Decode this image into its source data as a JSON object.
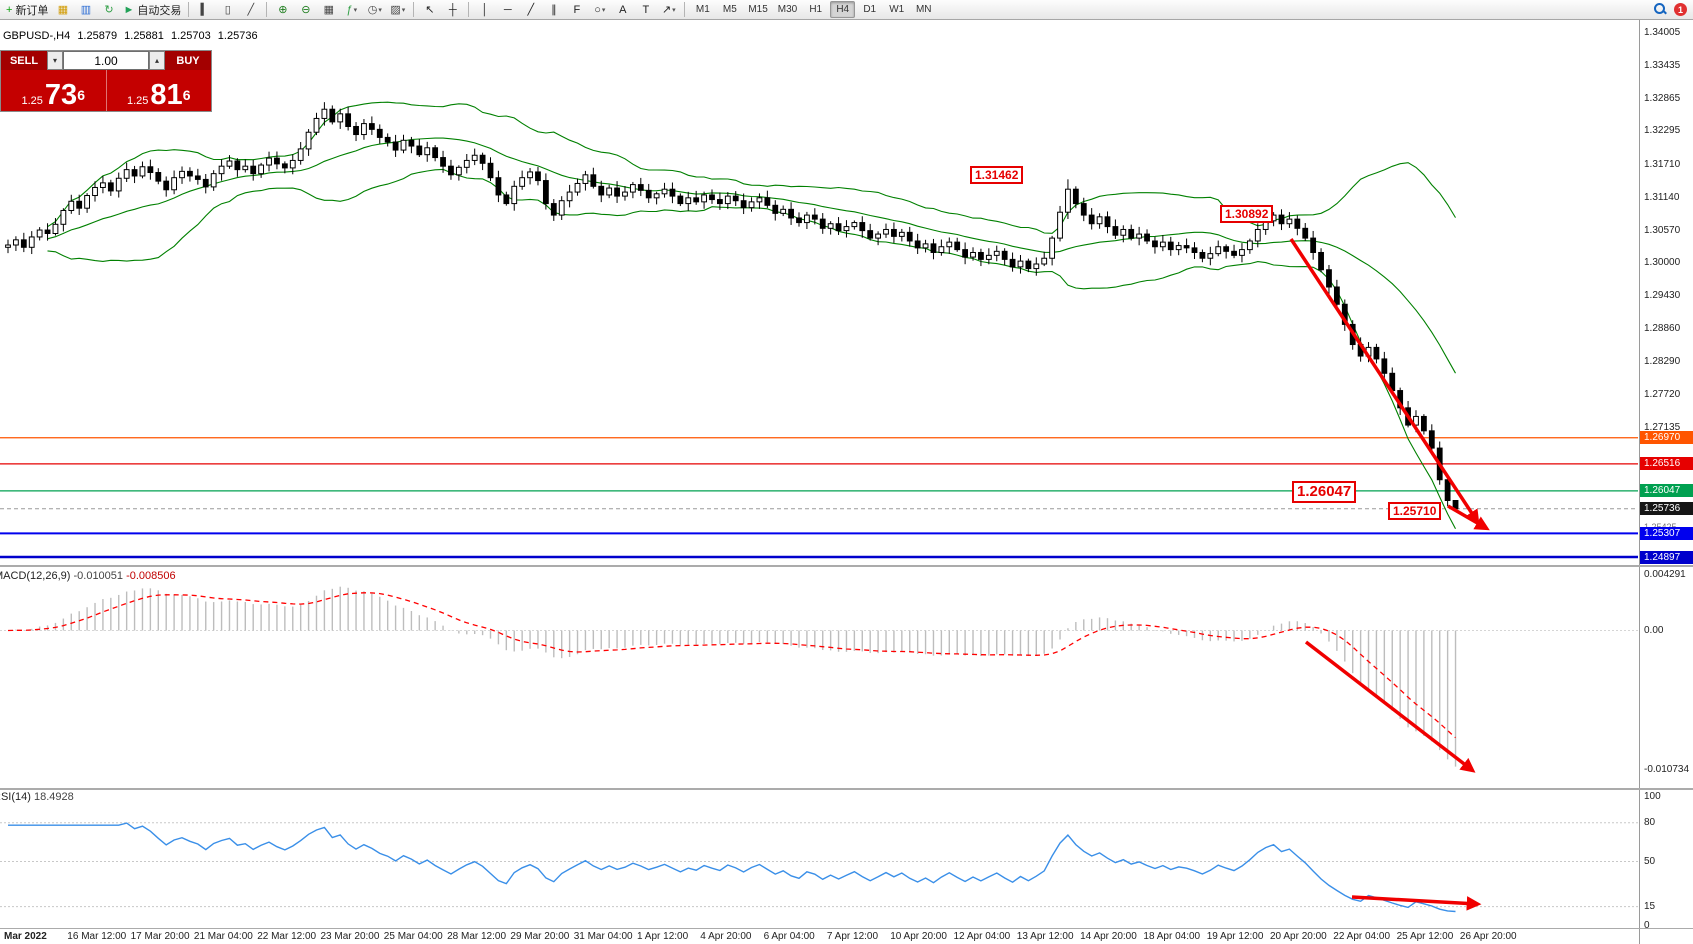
{
  "colors": {
    "annotation_red": "#e60000",
    "band_green": "#008000",
    "rsi_blue": "#3a8fe8",
    "macd_signal_red": "#ff0000",
    "histogram_gray": "#bdbdbd",
    "candle_outline": "#000000",
    "sell_red": "#c40000"
  },
  "toolbar": {
    "caret_glyph": "▾",
    "active_timeframe": "H4",
    "items": [
      {
        "t": "btn",
        "name": "new-order-button",
        "glyph": "+",
        "gc": "#0fa00f",
        "label": "新订单"
      },
      {
        "t": "icon",
        "name": "market-watch-icon",
        "glyph": "▦",
        "gc": "#d19a00"
      },
      {
        "t": "icon",
        "name": "data-window-icon",
        "glyph": "▥",
        "gc": "#2b6cd4"
      },
      {
        "t": "icon",
        "name": "refresh-icon",
        "glyph": "↻",
        "gc": "#2f9e44"
      },
      {
        "t": "btn",
        "name": "auto-trading-button",
        "glyph": "►",
        "gc": "#21a157",
        "label": "自动交易"
      },
      {
        "t": "sep"
      },
      {
        "t": "icon",
        "name": "bar-chart-icon",
        "glyph": "▍",
        "gc": "#444444"
      },
      {
        "t": "icon",
        "name": "candlestick-chart-icon",
        "glyph": "▯",
        "gc": "#444444"
      },
      {
        "t": "icon",
        "name": "line-chart-icon",
        "glyph": "╱",
        "gc": "#444444"
      },
      {
        "t": "sep"
      },
      {
        "t": "icon",
        "name": "zoom-in-icon",
        "glyph": "⊕",
        "gc": "#1c7c1c"
      },
      {
        "t": "icon",
        "name": "zoom-out-icon",
        "glyph": "⊖",
        "gc": "#1c7c1c"
      },
      {
        "t": "icon",
        "name": "tile-windows-icon",
        "glyph": "▦",
        "gc": "#444444"
      },
      {
        "t": "icon",
        "name": "indicators-icon",
        "glyph": "ƒ",
        "gc": "#2f9e44",
        "caret": true
      },
      {
        "t": "icon",
        "name": "periods-icon",
        "glyph": "◷",
        "gc": "#444444",
        "caret": true
      },
      {
        "t": "icon",
        "name": "template-icon",
        "glyph": "▨",
        "gc": "#444444",
        "caret": true
      },
      {
        "t": "sep"
      },
      {
        "t": "icon",
        "name": "cursor-icon",
        "glyph": "↖",
        "gc": "#222222"
      },
      {
        "t": "icon",
        "name": "crosshair-icon",
        "glyph": "┼",
        "gc": "#222222"
      },
      {
        "t": "sep"
      },
      {
        "t": "icon",
        "name": "vline-icon",
        "glyph": "│",
        "gc": "#222222"
      },
      {
        "t": "icon",
        "name": "hline-icon",
        "glyph": "─",
        "gc": "#222222"
      },
      {
        "t": "icon",
        "name": "trendline-icon",
        "glyph": "╱",
        "gc": "#222222"
      },
      {
        "t": "icon",
        "name": "channel-icon",
        "glyph": "∥",
        "gc": "#222222"
      },
      {
        "t": "icon",
        "name": "fibonacci-icon",
        "glyph": "F",
        "gc": "#222222"
      },
      {
        "t": "icon",
        "name": "shapes-icon",
        "glyph": "○",
        "gc": "#222222",
        "caret": true
      },
      {
        "t": "icon",
        "name": "text-icon",
        "glyph": "A",
        "gc": "#222222"
      },
      {
        "t": "icon",
        "name": "text-label-icon",
        "glyph": "T",
        "gc": "#222222"
      },
      {
        "t": "icon",
        "name": "arrows-icon",
        "glyph": "↗",
        "gc": "#222222",
        "caret": true
      },
      {
        "t": "sep"
      },
      {
        "t": "tf",
        "name": "timeframe-m1",
        "label": "M1"
      },
      {
        "t": "tf",
        "name": "timeframe-m5",
        "label": "M5"
      },
      {
        "t": "tf",
        "name": "timeframe-m15",
        "label": "M15"
      },
      {
        "t": "tf",
        "name": "timeframe-m30",
        "label": "M30"
      },
      {
        "t": "tf",
        "name": "timeframe-h1",
        "label": "H1"
      },
      {
        "t": "tf",
        "name": "timeframe-h4",
        "label": "H4"
      },
      {
        "t": "tf",
        "name": "timeframe-d1",
        "label": "D1"
      },
      {
        "t": "tf",
        "name": "timeframe-w1",
        "label": "W1"
      },
      {
        "t": "tf",
        "name": "timeframe-mn",
        "label": "MN"
      },
      {
        "t": "spacer"
      },
      {
        "t": "search",
        "name": "search-icon"
      },
      {
        "t": "badge",
        "name": "notification-badge",
        "label": "1"
      }
    ]
  },
  "chart_header": {
    "symbol_period": "GBPUSD-,H4",
    "open": "1.25879",
    "high": "1.25881",
    "low": "1.25703",
    "close": "1.25736"
  },
  "trade_panel": {
    "sell_label": "SELL",
    "buy_label": "BUY",
    "volume": "1.00",
    "dropdown_glyph": "▾",
    "stepper_glyph": "▴",
    "sell_price_prefix": "1.25",
    "sell_price_big": "73",
    "sell_price_sup": "6",
    "buy_price_prefix": "1.25",
    "buy_price_big": "81",
    "buy_price_sup": "6"
  },
  "price_scale": {
    "ticks": [
      "1.34005",
      "1.33435",
      "1.32865",
      "1.32295",
      "1.31710",
      "1.31140",
      "1.30570",
      "1.30000",
      "1.29430",
      "1.28860",
      "1.28290",
      "1.27720",
      "1.27135"
    ],
    "minor_tick": {
      "label": "1.25425",
      "price": 1.25425
    }
  },
  "levels": [
    {
      "label": "1.26970",
      "price": 1.2697,
      "line_color": "#ff5500",
      "box_color": "#ff5500",
      "width": 1.2,
      "style": "solid"
    },
    {
      "label": "1.26516",
      "price": 1.26516,
      "line_color": "#e60000",
      "box_color": "#e60000",
      "width": 1.2,
      "style": "solid"
    },
    {
      "label": "1.26047",
      "price": 1.26047,
      "line_color": "#00a050",
      "box_color": "#00a050",
      "width": 1.2,
      "style": "solid"
    },
    {
      "label": "1.25736",
      "price": 1.25736,
      "line_color": "#9a9a9a",
      "box_color": "#151515",
      "width": 1,
      "style": "dashed"
    },
    {
      "label": "1.25307",
      "price": 1.25307,
      "line_color": "#0000ee",
      "box_color": "#0000ee",
      "width": 2,
      "style": "solid"
    },
    {
      "label": "1.24897",
      "price": 1.24897,
      "line_color": "#0000cc",
      "box_color": "#0000cc",
      "width": 2.5,
      "style": "solid"
    }
  ],
  "annotations": {
    "high1": "1.31462",
    "high2": "1.30892",
    "level_callout": "1.26047",
    "low_callout": "1.25710"
  },
  "macd": {
    "title": "MACD(12,26,9)",
    "value": "-0.010051",
    "signal": "-0.008506",
    "scale_top": "0.004291",
    "scale_zero": "0.00",
    "scale_bottom": "-0.010734"
  },
  "rsi": {
    "title": "RSI(14)",
    "value": "18.4928",
    "levels": [
      "100",
      "80",
      "50",
      "15",
      "0"
    ]
  },
  "time_axis": [
    "Mar 2022",
    "16 Mar 12:00",
    "17 Mar 20:00",
    "21 Mar 04:00",
    "22 Mar 12:00",
    "23 Mar 20:00",
    "25 Mar 04:00",
    "28 Mar 12:00",
    "29 Mar 20:00",
    "31 Mar 04:00",
    "1 Apr 12:00",
    "4 Apr 20:00",
    "6 Apr 04:00",
    "7 Apr 12:00",
    "10 Apr 20:00",
    "12 Apr 04:00",
    "13 Apr 12:00",
    "14 Apr 20:00",
    "18 Apr 04:00",
    "19 Apr 12:00",
    "20 Apr 20:00",
    "22 Apr 04:00",
    "25 Apr 12:00",
    "26 Apr 20:00"
  ],
  "chart_data": {
    "type": "candlestick+indicators",
    "symbol": "GBPUSD",
    "period": "H4",
    "bollinger": {
      "period": 20,
      "deviation": 2
    },
    "macd_params": [
      12,
      26,
      9
    ],
    "rsi_period": 14,
    "first_open": 1.3028,
    "closes": [
      1.3032,
      1.3041,
      1.3028,
      1.3046,
      1.3058,
      1.3052,
      1.3068,
      1.3092,
      1.3108,
      1.3096,
      1.3118,
      1.3132,
      1.314,
      1.3126,
      1.3148,
      1.3163,
      1.3152,
      1.3168,
      1.3158,
      1.3143,
      1.3128,
      1.3149,
      1.316,
      1.3152,
      1.3146,
      1.3133,
      1.3156,
      1.3169,
      1.3178,
      1.3163,
      1.3169,
      1.3156,
      1.3171,
      1.3183,
      1.3173,
      1.3166,
      1.3179,
      1.3199,
      1.3228,
      1.3252,
      1.3268,
      1.3246,
      1.326,
      1.3238,
      1.3224,
      1.3243,
      1.3233,
      1.3219,
      1.3211,
      1.3197,
      1.3214,
      1.3204,
      1.3189,
      1.3201,
      1.3184,
      1.3169,
      1.3154,
      1.3167,
      1.3179,
      1.3188,
      1.3174,
      1.3149,
      1.3119,
      1.3104,
      1.3134,
      1.3149,
      1.3159,
      1.3144,
      1.3104,
      1.3084,
      1.3109,
      1.3124,
      1.3139,
      1.3154,
      1.3134,
      1.3119,
      1.3131,
      1.3117,
      1.3124,
      1.3137,
      1.3127,
      1.3114,
      1.3121,
      1.3129,
      1.3117,
      1.3104,
      1.3114,
      1.3107,
      1.3119,
      1.3111,
      1.3104,
      1.3117,
      1.3109,
      1.3097,
      1.3107,
      1.3114,
      1.3101,
      1.3087,
      1.3094,
      1.3079,
      1.3071,
      1.3084,
      1.3077,
      1.3061,
      1.3069,
      1.3057,
      1.3064,
      1.3071,
      1.3057,
      1.3044,
      1.3051,
      1.3059,
      1.3047,
      1.3054,
      1.3039,
      1.3027,
      1.3034,
      1.3019,
      1.3029,
      1.3037,
      1.3024,
      1.3011,
      1.3019,
      1.3007,
      1.3014,
      1.3021,
      1.3007,
      1.2994,
      1.3004,
      1.2991,
      1.2999,
      1.3009,
      1.3044,
      1.3089,
      1.3129,
      1.3104,
      1.3084,
      1.3069,
      1.3081,
      1.3064,
      1.3049,
      1.3059,
      1.3044,
      1.3051,
      1.3039,
      1.3029,
      1.3037,
      1.3024,
      1.3031,
      1.3027,
      1.3019,
      1.3009,
      1.3017,
      1.3029,
      1.3021,
      1.3014,
      1.3024,
      1.3039,
      1.3059,
      1.3074,
      1.3084,
      1.3069,
      1.3077,
      1.3061,
      1.3044,
      1.3019,
      1.2989,
      1.2959,
      1.2929,
      1.2894,
      1.2859,
      1.2839,
      1.2854,
      1.2834,
      1.2809,
      1.2779,
      1.2749,
      1.2719,
      1.2734,
      1.2709,
      1.2679,
      1.2624,
      1.25879,
      1.25736
    ],
    "high_overrides": {
      "134": 1.31462,
      "160": 1.30892,
      "183": 1.25881
    },
    "low_overrides": {
      "183": 1.25703
    }
  }
}
